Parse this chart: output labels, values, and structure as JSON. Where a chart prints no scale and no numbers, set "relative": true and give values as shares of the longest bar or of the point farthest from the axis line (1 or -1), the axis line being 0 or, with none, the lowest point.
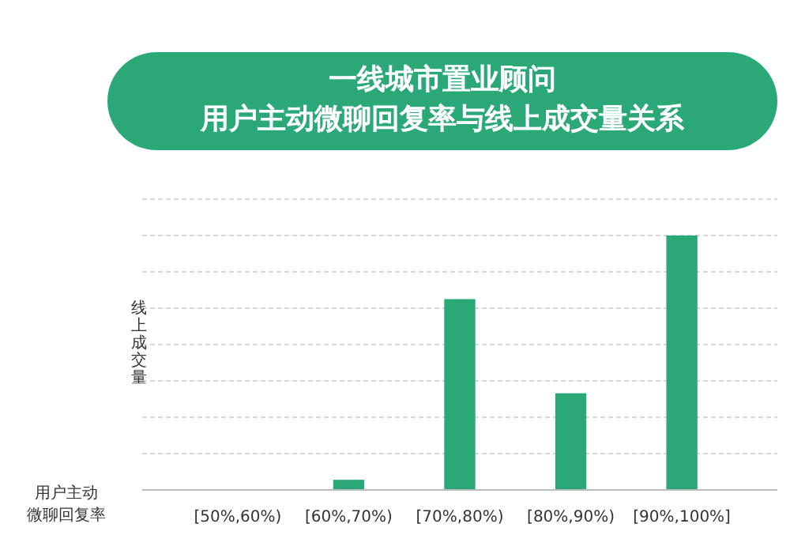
{
  "chart_data": {
    "type": "bar",
    "title": "一线城市置业顾问",
    "subtitle": "用户主动微聊回复率与线上成交量关系",
    "xlabel": "用户主动微聊回复率",
    "ylabel": "线上成交量",
    "categories": [
      "[50%,60%)",
      "[60%,70%)",
      "[70%,80%)",
      "[80%,90%)",
      "[90%,100%]"
    ],
    "values": [
      0,
      0.04,
      0.75,
      0.38,
      1
    ],
    "color": "#2aa877",
    "relative": true,
    "grid": true
  }
}
